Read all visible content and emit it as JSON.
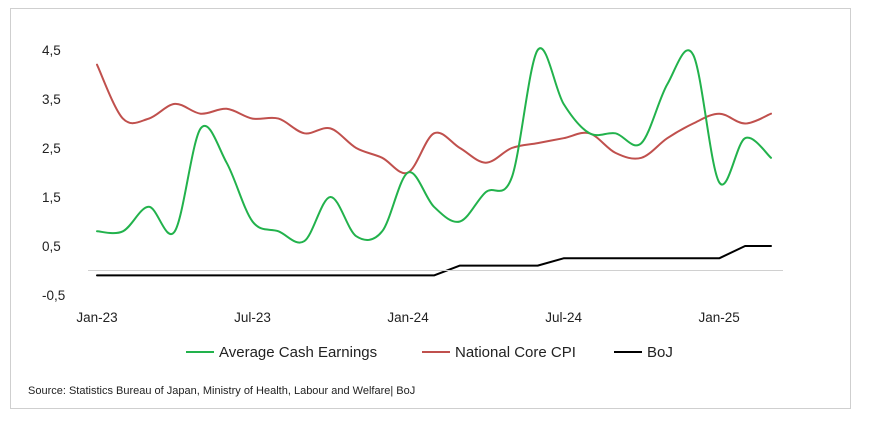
{
  "chart_data": {
    "type": "line",
    "title": "",
    "xlabel": "",
    "ylabel": "",
    "ylim": [
      -0.5,
      4.9
    ],
    "y_ticks": [
      "4,5",
      "3,5",
      "2,5",
      "1,5",
      "0,5",
      "-0,5"
    ],
    "y_tick_values": [
      4.5,
      3.5,
      2.5,
      1.5,
      0.5,
      -0.5
    ],
    "x_tick_labels": [
      "Jan-23",
      "Jul-23",
      "Jan-24",
      "Jul-24",
      "Jan-25"
    ],
    "x_tick_index": [
      0,
      6,
      12,
      18,
      24
    ],
    "x": [
      "Jan-23",
      "Feb-23",
      "Mar-23",
      "Apr-23",
      "May-23",
      "Jun-23",
      "Jul-23",
      "Aug-23",
      "Sep-23",
      "Oct-23",
      "Nov-23",
      "Dec-23",
      "Jan-24",
      "Feb-24",
      "Mar-24",
      "Apr-24",
      "May-24",
      "Jun-24",
      "Jul-24",
      "Aug-24",
      "Sep-24",
      "Oct-24",
      "Nov-24",
      "Dec-24",
      "Jan-25",
      "Feb-25",
      "Mar-25"
    ],
    "grid": false,
    "legend_position": "bottom",
    "series": [
      {
        "name": "Average Cash Earnings",
        "color": "#22b24c",
        "smooth": true,
        "values": [
          0.8,
          0.8,
          1.3,
          0.8,
          2.9,
          2.2,
          1.0,
          0.8,
          0.6,
          1.5,
          0.7,
          0.8,
          2.0,
          1.3,
          1.0,
          1.6,
          1.9,
          4.5,
          3.4,
          2.8,
          2.8,
          2.6,
          3.8,
          4.4,
          1.8,
          2.7,
          2.3
        ]
      },
      {
        "name": "National Core CPI",
        "color": "#c0504d",
        "smooth": true,
        "values": [
          4.2,
          3.1,
          3.1,
          3.4,
          3.2,
          3.3,
          3.1,
          3.1,
          2.8,
          2.9,
          2.5,
          2.3,
          2.0,
          2.8,
          2.5,
          2.2,
          2.5,
          2.6,
          2.7,
          2.8,
          2.4,
          2.3,
          2.7,
          3.0,
          3.2,
          3.0,
          3.2
        ]
      },
      {
        "name": "BoJ",
        "color": "#000000",
        "smooth": false,
        "values": [
          -0.1,
          -0.1,
          -0.1,
          -0.1,
          -0.1,
          -0.1,
          -0.1,
          -0.1,
          -0.1,
          -0.1,
          -0.1,
          -0.1,
          -0.1,
          -0.1,
          0.1,
          0.1,
          0.1,
          0.1,
          0.25,
          0.25,
          0.25,
          0.25,
          0.25,
          0.25,
          0.25,
          0.5,
          0.5
        ]
      }
    ]
  },
  "source_text": "Source: Statistics Bureau of Japan, Ministry of Health, Labour and Welfare| BoJ"
}
